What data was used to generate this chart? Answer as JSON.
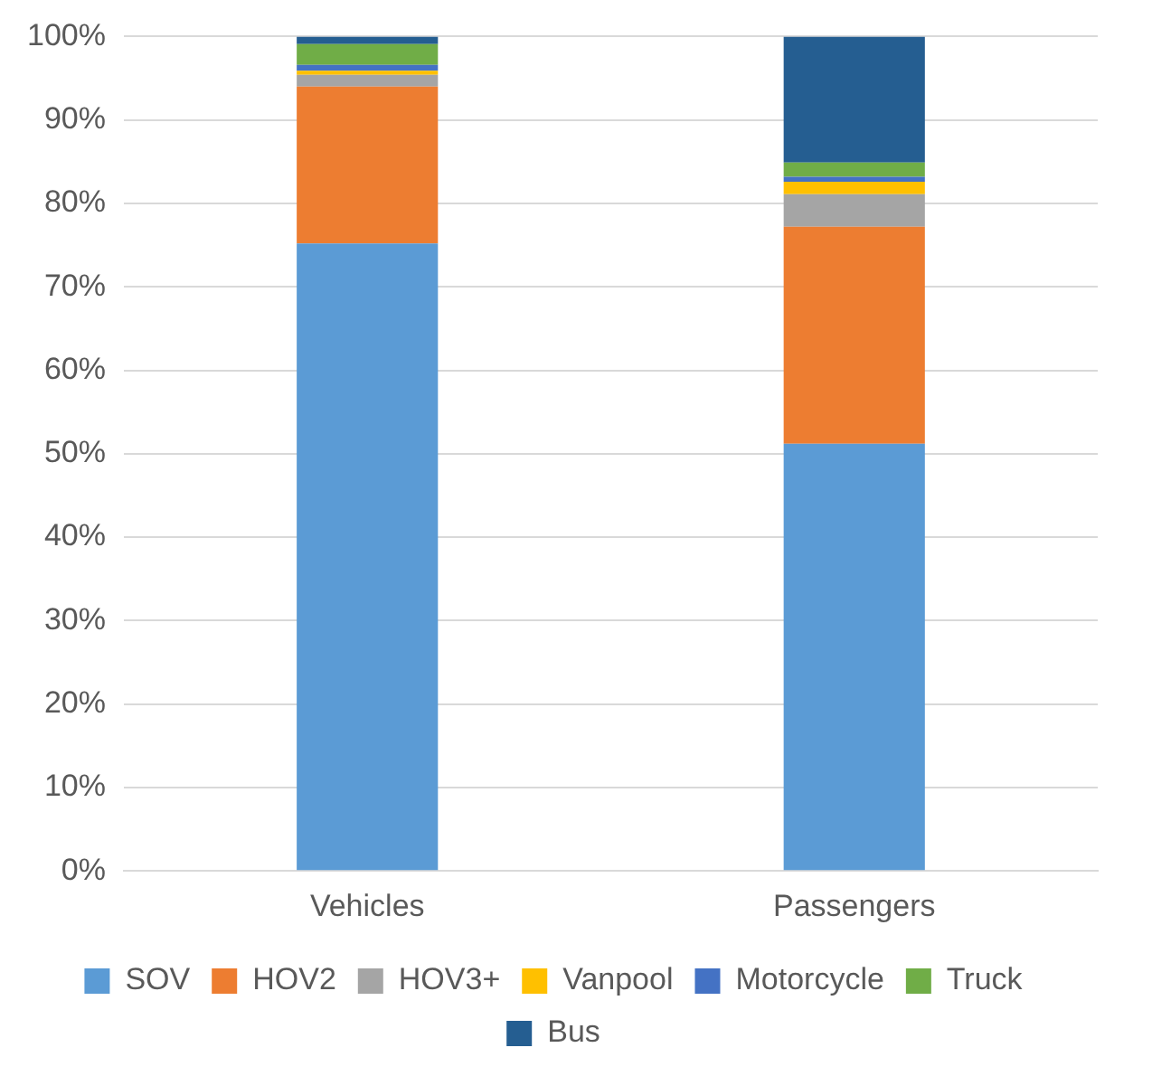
{
  "chart_data": {
    "type": "bar",
    "stacked": true,
    "categories": [
      "Vehicles",
      "Passengers"
    ],
    "series": [
      {
        "name": "SOV",
        "color": "#5b9bd5",
        "values": [
          75.2,
          51.2
        ]
      },
      {
        "name": "HOV2",
        "color": "#ed7d31",
        "values": [
          18.8,
          26.0
        ]
      },
      {
        "name": "HOV3+",
        "color": "#a5a5a5",
        "values": [
          1.4,
          3.9
        ]
      },
      {
        "name": "Vanpool",
        "color": "#ffc000",
        "values": [
          0.5,
          1.5
        ]
      },
      {
        "name": "Motorcycle",
        "color": "#4472c4",
        "values": [
          0.7,
          0.6
        ]
      },
      {
        "name": "Truck",
        "color": "#70ad47",
        "values": [
          2.5,
          1.7
        ]
      },
      {
        "name": "Bus",
        "color": "#255e91",
        "values": [
          0.9,
          15.1
        ]
      }
    ],
    "ylim": [
      0,
      100
    ],
    "yticks": [
      {
        "value": 0,
        "label": "0%"
      },
      {
        "value": 10,
        "label": "10%"
      },
      {
        "value": 20,
        "label": "20%"
      },
      {
        "value": 30,
        "label": "30%"
      },
      {
        "value": 40,
        "label": "40%"
      },
      {
        "value": 50,
        "label": "50%"
      },
      {
        "value": 60,
        "label": "60%"
      },
      {
        "value": 70,
        "label": "70%"
      },
      {
        "value": 80,
        "label": "80%"
      },
      {
        "value": 90,
        "label": "90%"
      },
      {
        "value": 100,
        "label": "100%"
      }
    ],
    "grid": "y",
    "legend": "bottom"
  }
}
